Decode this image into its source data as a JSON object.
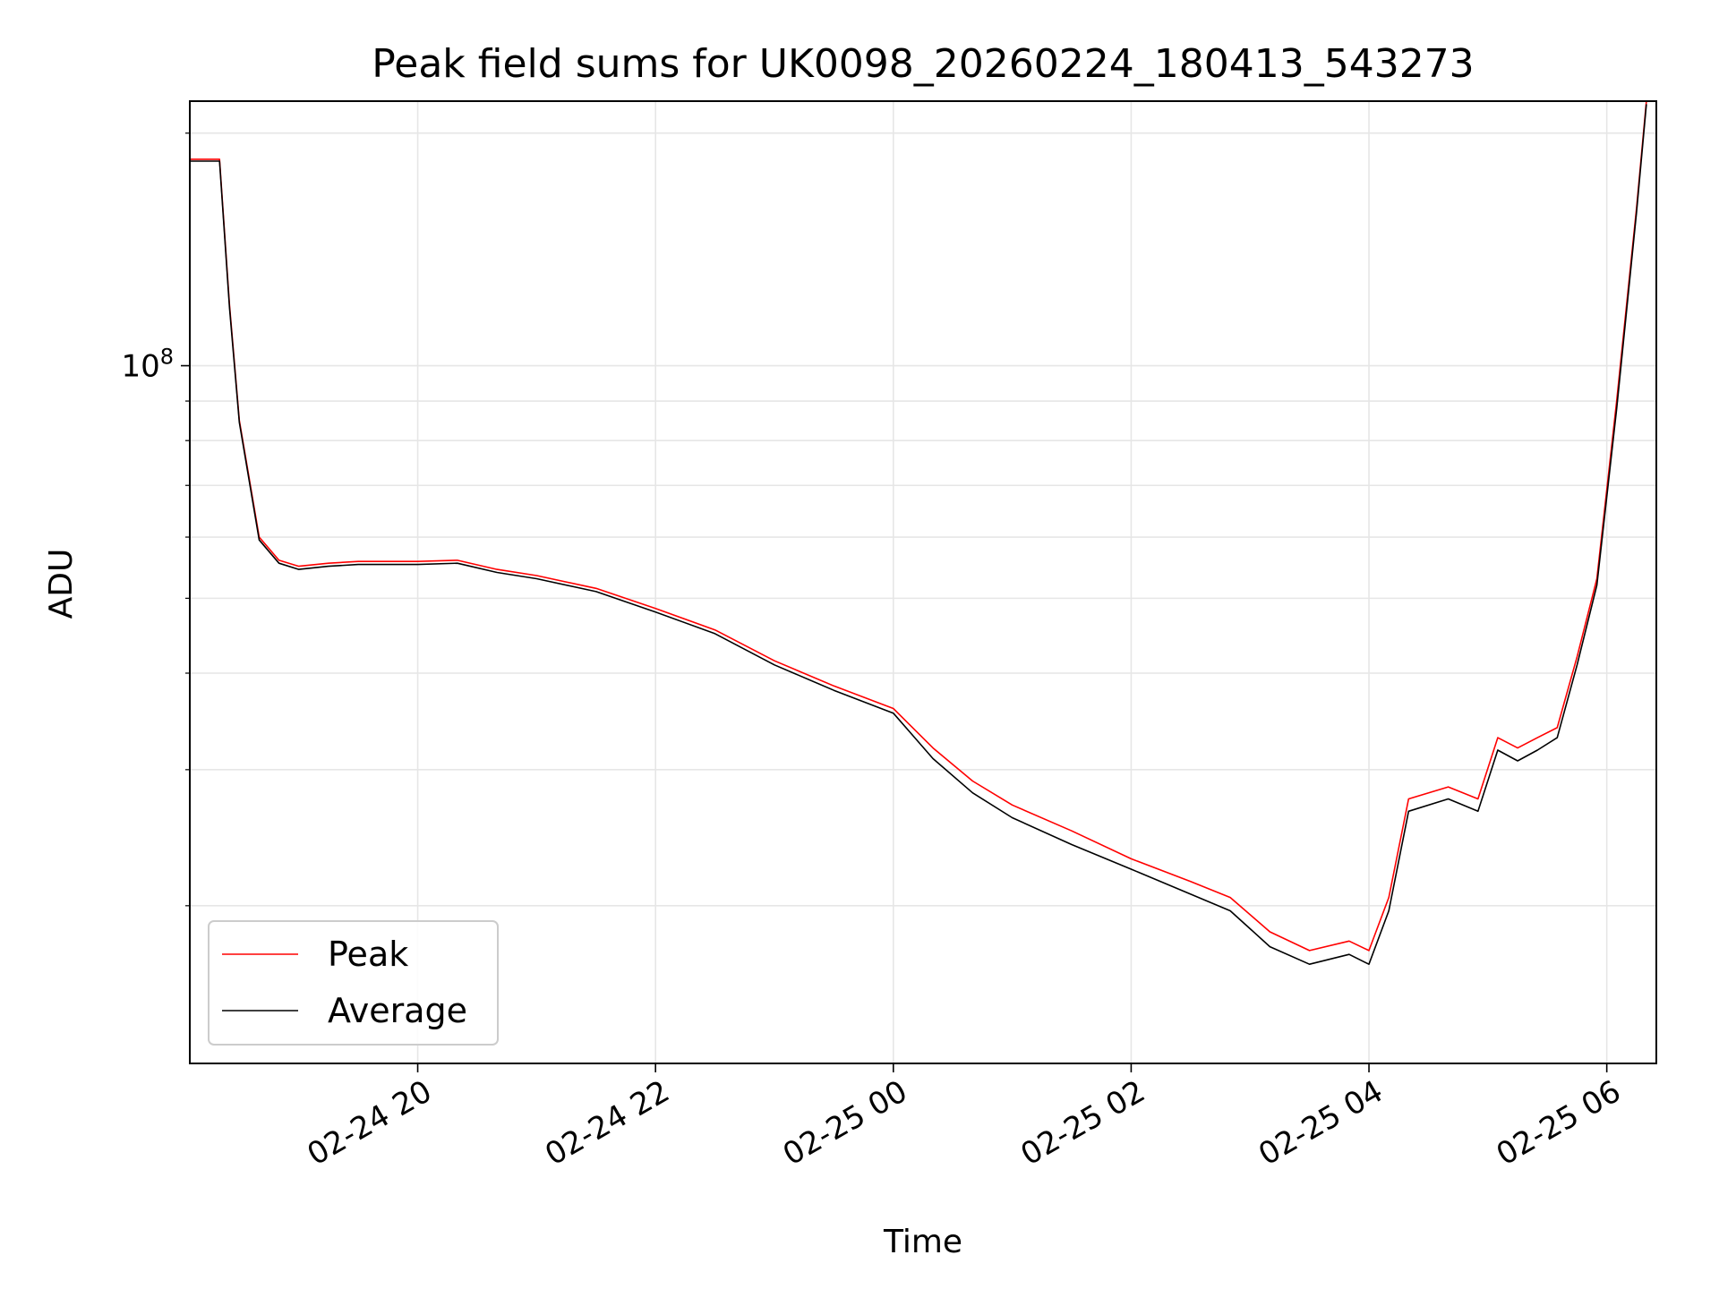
{
  "chart_data": {
    "type": "line",
    "title": "Peak field sums for UK0098_20260224_180413_543273",
    "xlabel": "Time",
    "ylabel": "ADU",
    "x_scale": "time",
    "y_scale": "log",
    "xlim": [
      "2026-02-24 18:05",
      "2026-02-25 06:25"
    ],
    "ylim": [
      12500000,
      220000000
    ],
    "x_ticks": [
      {
        "x": "2026-02-24 20:00",
        "label": "02-24 20"
      },
      {
        "x": "2026-02-24 22:00",
        "label": "02-24 22"
      },
      {
        "x": "2026-02-25 00:00",
        "label": "02-25 00"
      },
      {
        "x": "2026-02-25 02:00",
        "label": "02-25 02"
      },
      {
        "x": "2026-02-25 04:00",
        "label": "02-25 04"
      },
      {
        "x": "2026-02-25 06:00",
        "label": "02-25 06"
      }
    ],
    "y_major_tick": {
      "value": 100000000,
      "label_base": "10",
      "label_exp": "8"
    },
    "y_minor_ticks": [
      20000000,
      30000000,
      40000000,
      50000000,
      60000000,
      70000000,
      80000000,
      90000000,
      200000000
    ],
    "grid": true,
    "legend": {
      "position": "bottom-left",
      "entries": [
        "Peak",
        "Average"
      ]
    },
    "series": [
      {
        "name": "Peak",
        "color": "#ff0000",
        "x": [
          "2026-02-24 18:05",
          "2026-02-24 18:15",
          "2026-02-24 18:20",
          "2026-02-24 18:25",
          "2026-02-24 18:30",
          "2026-02-24 18:40",
          "2026-02-24 18:50",
          "2026-02-24 19:00",
          "2026-02-24 19:15",
          "2026-02-24 19:30",
          "2026-02-24 19:45",
          "2026-02-24 20:00",
          "2026-02-24 20:20",
          "2026-02-24 20:40",
          "2026-02-24 21:00",
          "2026-02-24 21:30",
          "2026-02-24 22:00",
          "2026-02-24 22:30",
          "2026-02-24 23:00",
          "2026-02-24 23:30",
          "2026-02-25 00:00",
          "2026-02-25 00:20",
          "2026-02-25 00:40",
          "2026-02-25 01:00",
          "2026-02-25 01:30",
          "2026-02-25 02:00",
          "2026-02-25 02:30",
          "2026-02-25 02:50",
          "2026-02-25 03:10",
          "2026-02-25 03:30",
          "2026-02-25 03:50",
          "2026-02-25 04:00",
          "2026-02-25 04:10",
          "2026-02-25 04:20",
          "2026-02-25 04:40",
          "2026-02-25 04:55",
          "2026-02-25 05:05",
          "2026-02-25 05:15",
          "2026-02-25 05:25",
          "2026-02-25 05:35",
          "2026-02-25 05:45",
          "2026-02-25 05:55",
          "2026-02-25 06:05",
          "2026-02-25 06:15",
          "2026-02-25 06:20"
        ],
        "y": [
          185000000,
          185000000,
          185000000,
          120000000,
          85000000,
          60000000,
          56000000,
          55000000,
          55500000,
          55800000,
          55800000,
          55800000,
          56000000,
          54500000,
          53500000,
          51500000,
          48500000,
          45500000,
          41500000,
          38500000,
          36000000,
          32000000,
          29000000,
          27000000,
          25000000,
          23000000,
          21500000,
          20500000,
          18500000,
          17500000,
          18000000,
          17500000,
          20500000,
          27500000,
          28500000,
          27500000,
          33000000,
          32000000,
          33000000,
          34000000,
          42000000,
          53000000,
          90000000,
          160000000,
          220000000
        ]
      },
      {
        "name": "Average",
        "color": "#000000",
        "x": [
          "2026-02-24 18:05",
          "2026-02-24 18:15",
          "2026-02-24 18:20",
          "2026-02-24 18:25",
          "2026-02-24 18:30",
          "2026-02-24 18:40",
          "2026-02-24 18:50",
          "2026-02-24 19:00",
          "2026-02-24 19:15",
          "2026-02-24 19:30",
          "2026-02-24 19:45",
          "2026-02-24 20:00",
          "2026-02-24 20:20",
          "2026-02-24 20:40",
          "2026-02-24 21:00",
          "2026-02-24 21:30",
          "2026-02-24 22:00",
          "2026-02-24 22:30",
          "2026-02-24 23:00",
          "2026-02-24 23:30",
          "2026-02-25 00:00",
          "2026-02-25 00:20",
          "2026-02-25 00:40",
          "2026-02-25 01:00",
          "2026-02-25 01:30",
          "2026-02-25 02:00",
          "2026-02-25 02:30",
          "2026-02-25 02:50",
          "2026-02-25 03:10",
          "2026-02-25 03:30",
          "2026-02-25 03:50",
          "2026-02-25 04:00",
          "2026-02-25 04:10",
          "2026-02-25 04:20",
          "2026-02-25 04:40",
          "2026-02-25 04:55",
          "2026-02-25 05:05",
          "2026-02-25 05:15",
          "2026-02-25 05:25",
          "2026-02-25 05:35",
          "2026-02-25 05:45",
          "2026-02-25 05:55",
          "2026-02-25 06:05",
          "2026-02-25 06:15",
          "2026-02-25 06:20"
        ],
        "y": [
          184000000,
          184000000,
          184000000,
          119000000,
          84500000,
          59500000,
          55500000,
          54500000,
          55000000,
          55300000,
          55300000,
          55300000,
          55500000,
          54000000,
          53000000,
          51000000,
          48000000,
          45000000,
          41000000,
          38000000,
          35500000,
          31000000,
          28000000,
          26000000,
          24000000,
          22300000,
          20700000,
          19700000,
          17700000,
          16800000,
          17300000,
          16800000,
          19700000,
          26500000,
          27500000,
          26500000,
          31800000,
          30800000,
          31800000,
          33000000,
          41000000,
          52000000,
          88000000,
          158000000,
          218000000
        ]
      }
    ]
  }
}
